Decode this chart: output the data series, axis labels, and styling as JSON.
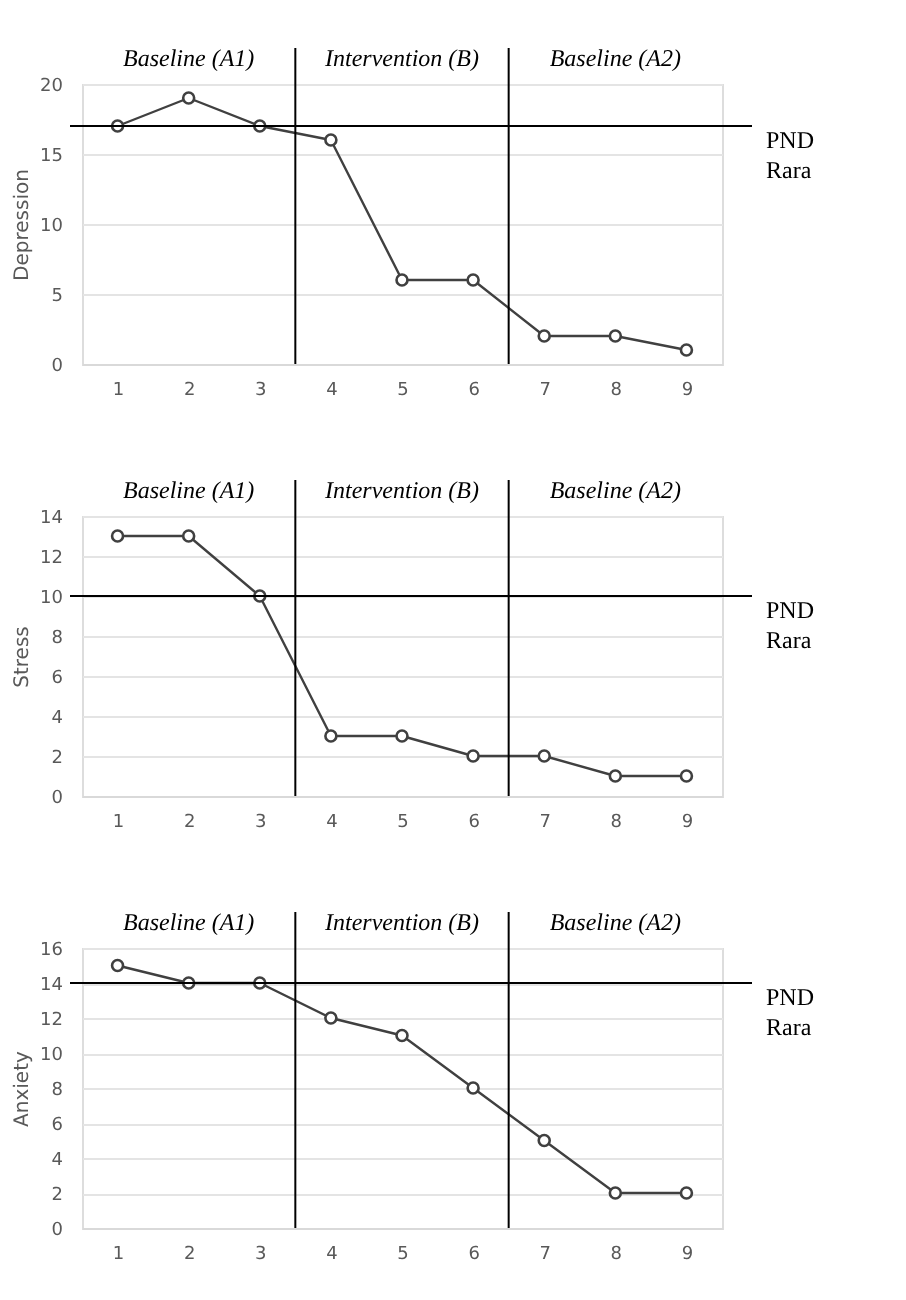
{
  "chart_data": [
    {
      "type": "line",
      "ylabel": "Depression",
      "x": [
        1,
        2,
        3,
        4,
        5,
        6,
        7,
        8,
        9
      ],
      "xlim": [
        0.5,
        9.5
      ],
      "xticks": [
        1,
        2,
        3,
        4,
        5,
        6,
        7,
        8,
        9
      ],
      "ylim": [
        0,
        20
      ],
      "yticks": [
        0,
        5,
        10,
        15,
        20
      ],
      "grid": "y",
      "marker": "circle",
      "line_style": "solid",
      "series": [
        {
          "color": "#404040",
          "values": [
            17,
            19,
            17,
            16,
            6,
            6,
            2,
            2,
            1
          ]
        }
      ],
      "ref_lines": [
        {
          "axis": "x",
          "value": 3.5
        },
        {
          "axis": "x",
          "value": 6.5
        },
        {
          "axis": "y",
          "value": 17,
          "label": "PND Rara"
        }
      ],
      "annotations": [
        "Baseline (A1)",
        "Intervention (B)",
        "Baseline (A2)"
      ]
    },
    {
      "type": "line",
      "ylabel": "Stress",
      "x": [
        1,
        2,
        3,
        4,
        5,
        6,
        7,
        8,
        9
      ],
      "xlim": [
        0.5,
        9.5
      ],
      "xticks": [
        1,
        2,
        3,
        4,
        5,
        6,
        7,
        8,
        9
      ],
      "ylim": [
        0,
        14
      ],
      "yticks": [
        0,
        2,
        4,
        6,
        8,
        10,
        12,
        14
      ],
      "grid": "y",
      "marker": "circle",
      "line_style": "solid",
      "series": [
        {
          "color": "#404040",
          "values": [
            13,
            13,
            10,
            3,
            3,
            2,
            2,
            1,
            1
          ]
        }
      ],
      "ref_lines": [
        {
          "axis": "x",
          "value": 3.5
        },
        {
          "axis": "x",
          "value": 6.5
        },
        {
          "axis": "y",
          "value": 10,
          "label": "PND Rara"
        }
      ],
      "annotations": [
        "Baseline (A1)",
        "Intervention (B)",
        "Baseline (A2)"
      ]
    },
    {
      "type": "line",
      "ylabel": "Anxiety",
      "x": [
        1,
        2,
        3,
        4,
        5,
        6,
        7,
        8,
        9
      ],
      "xlim": [
        0.5,
        9.5
      ],
      "xticks": [
        1,
        2,
        3,
        4,
        5,
        6,
        7,
        8,
        9
      ],
      "ylim": [
        0,
        16
      ],
      "yticks": [
        0,
        2,
        4,
        6,
        8,
        10,
        12,
        14,
        16
      ],
      "grid": "y",
      "marker": "circle",
      "line_style": "solid",
      "series": [
        {
          "color": "#404040",
          "values": [
            15,
            14,
            14,
            12,
            11,
            8,
            5,
            2,
            2
          ]
        }
      ],
      "ref_lines": [
        {
          "axis": "x",
          "value": 3.5
        },
        {
          "axis": "x",
          "value": 6.5
        },
        {
          "axis": "y",
          "value": 14,
          "label": "PND Rara"
        }
      ],
      "annotations": [
        "Baseline (A1)",
        "Intervention (B)",
        "Baseline (A2)"
      ]
    }
  ]
}
